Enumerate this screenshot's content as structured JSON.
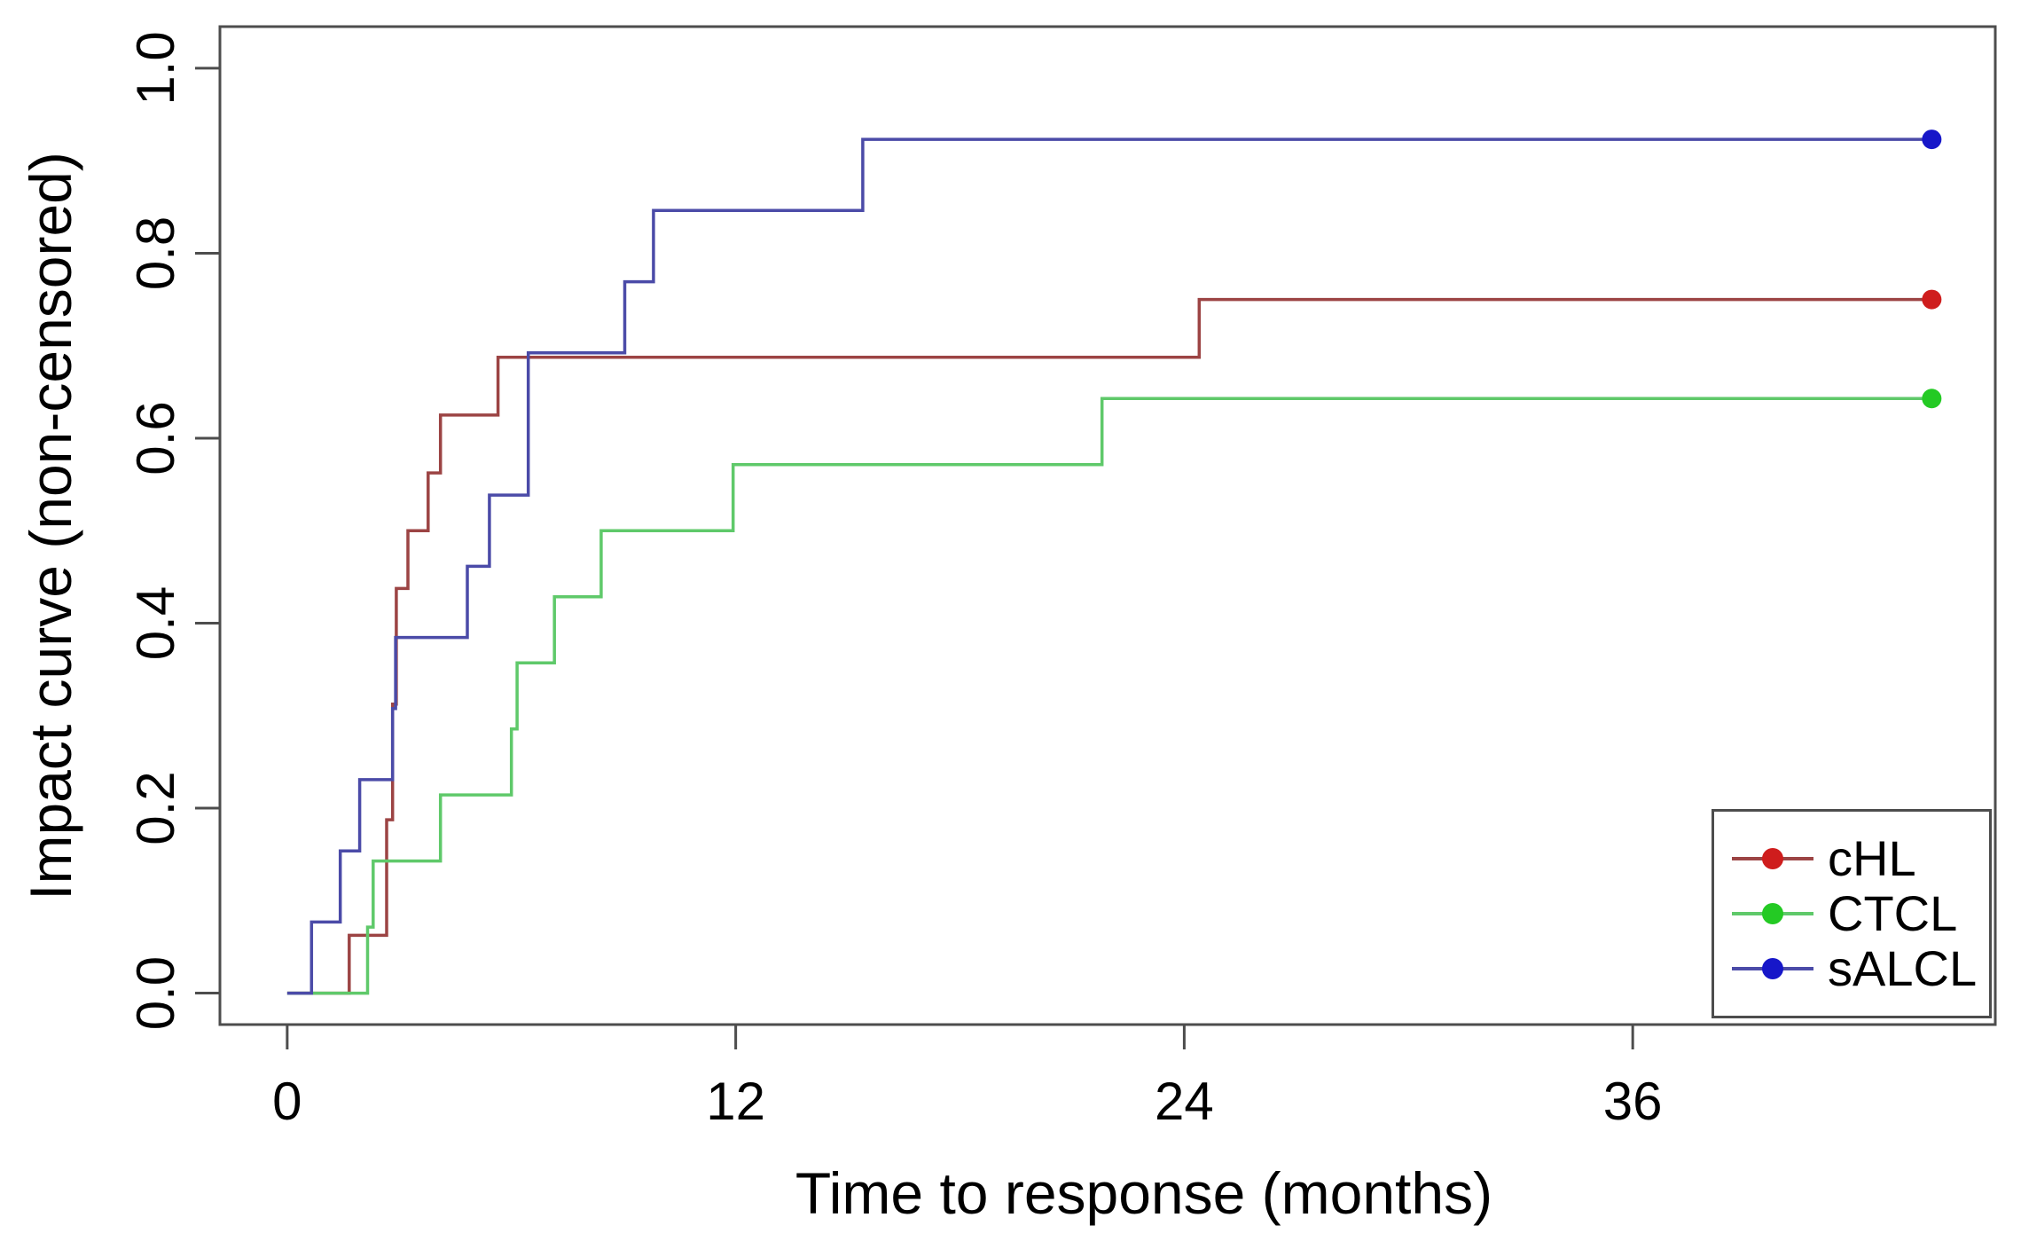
{
  "chart_data": {
    "type": "line",
    "subtype": "step-post",
    "title": "",
    "xlabel": "Time to response (months)",
    "ylabel": "Impact curve (non-censored)",
    "xlim": [
      -1.8,
      45.7
    ],
    "ylim": [
      -0.034,
      1.045
    ],
    "grid": false,
    "axis_color": "#4d4d4d",
    "xticks": {
      "values": [
        0,
        12,
        24,
        36
      ],
      "labels": [
        "0",
        "12",
        "24",
        "36"
      ]
    },
    "yticks": {
      "values": [
        0.0,
        0.2,
        0.4,
        0.6,
        0.8,
        1.0
      ],
      "labels": [
        "0.0",
        "0.2",
        "0.4",
        "0.6",
        "0.8",
        "1.0"
      ]
    },
    "legend": {
      "position": "bottom-right"
    },
    "series": [
      {
        "name": "cHL",
        "color": "#9c4444",
        "marker_color": "#cf1d1d",
        "end_x": 44,
        "steps": [
          [
            0,
            0
          ],
          [
            1.66,
            0.0625
          ],
          [
            2.66,
            0.1875
          ],
          [
            2.82,
            0.3125
          ],
          [
            2.92,
            0.4375
          ],
          [
            3.23,
            0.5
          ],
          [
            3.77,
            0.5625
          ],
          [
            4.1,
            0.625
          ],
          [
            5.64,
            0.6875
          ],
          [
            24.4,
            0.75
          ]
        ]
      },
      {
        "name": "CTCL",
        "color": "#5fc96a",
        "marker_color": "#24ca24",
        "end_x": 44,
        "steps": [
          [
            0,
            0
          ],
          [
            2.15,
            0.0714
          ],
          [
            2.3,
            0.1429
          ],
          [
            4.1,
            0.2143
          ],
          [
            6.0,
            0.2857
          ],
          [
            6.15,
            0.3571
          ],
          [
            7.15,
            0.4286
          ],
          [
            8.4,
            0.5
          ],
          [
            11.93,
            0.5714
          ],
          [
            21.8,
            0.6429
          ]
        ]
      },
      {
        "name": "sALCL",
        "color": "#4b4ba8",
        "marker_color": "#1717c9",
        "end_x": 44,
        "steps": [
          [
            0,
            0
          ],
          [
            0.65,
            0.0769
          ],
          [
            1.42,
            0.1538
          ],
          [
            1.94,
            0.2308
          ],
          [
            2.82,
            0.3077
          ],
          [
            2.9,
            0.3846
          ],
          [
            4.82,
            0.4615
          ],
          [
            5.41,
            0.5385
          ],
          [
            6.45,
            0.6923
          ],
          [
            9.03,
            0.7692
          ],
          [
            9.8,
            0.8462
          ],
          [
            15.4,
            0.9231
          ]
        ]
      }
    ]
  }
}
